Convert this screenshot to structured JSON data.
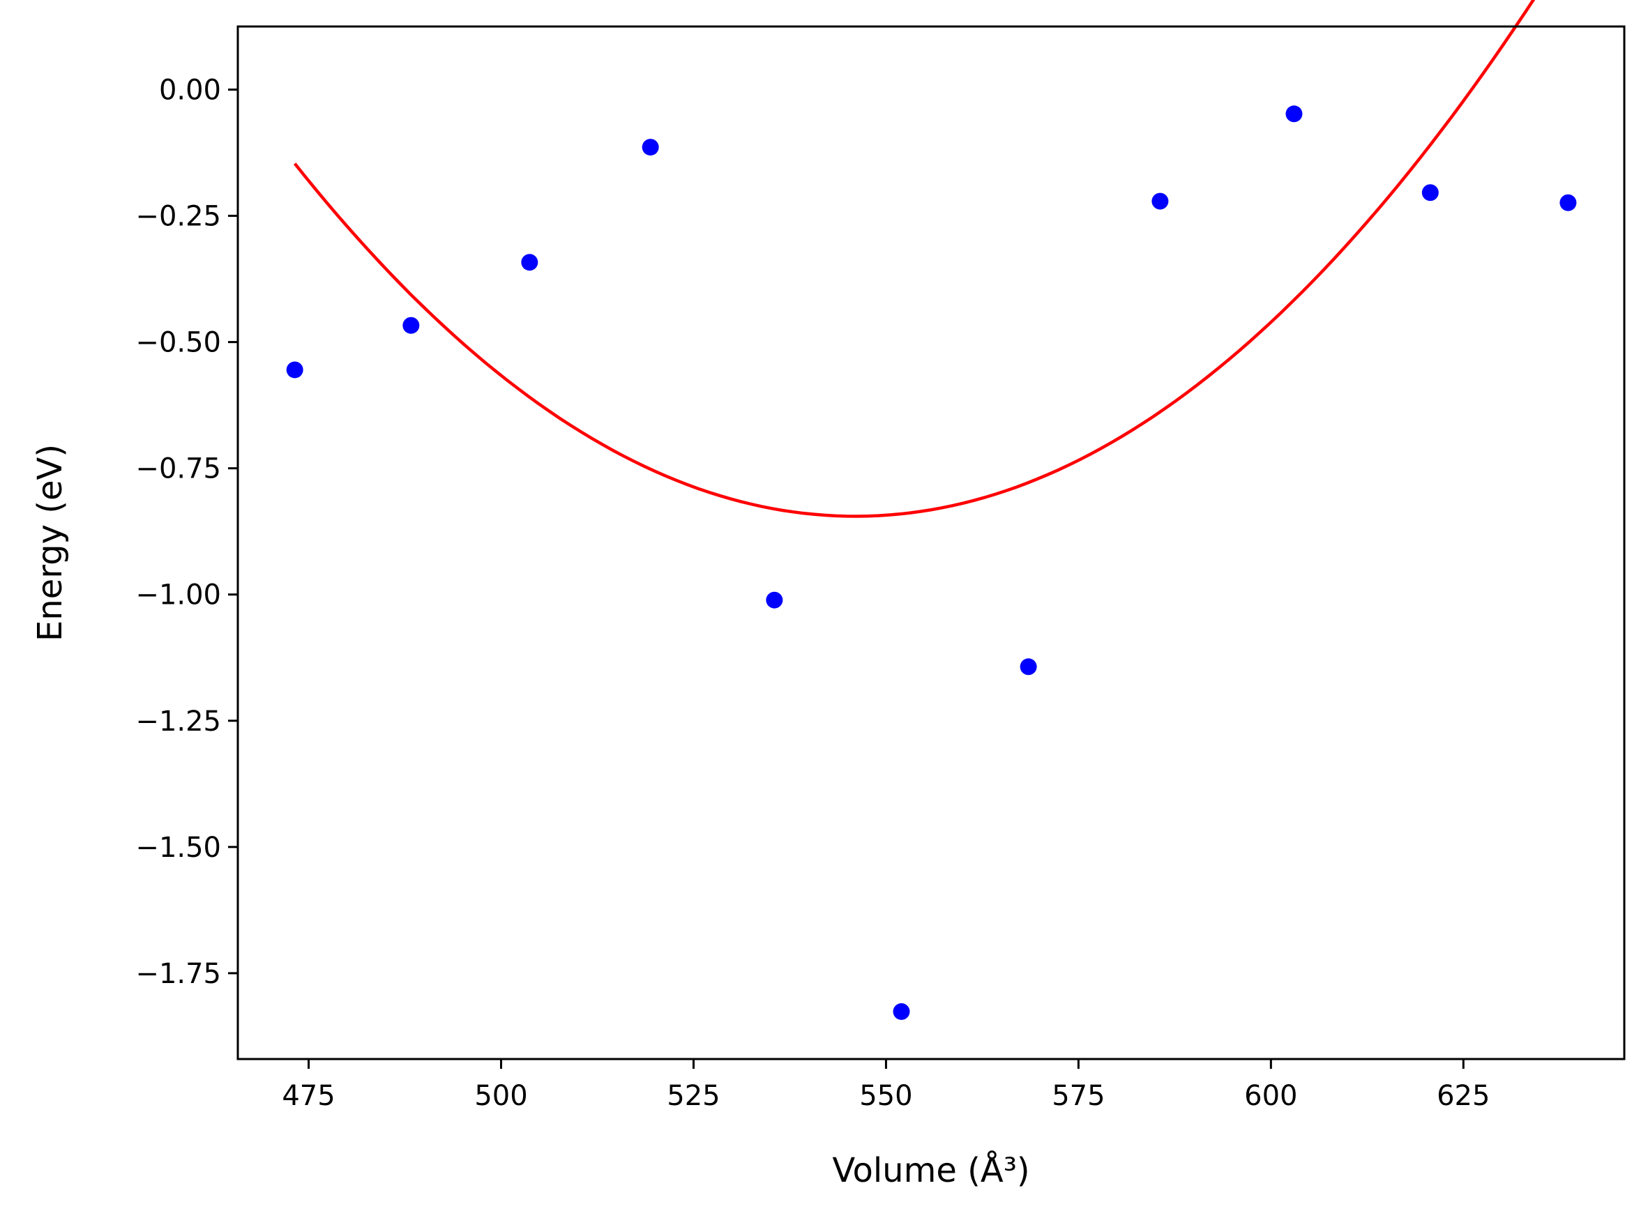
{
  "chart_data": {
    "type": "scatter",
    "xlabel": "Volume (Å³)",
    "ylabel": "Energy (eV)",
    "xlim": [
      465.8,
      645.9
    ],
    "ylim": [
      -1.92,
      0.125
    ],
    "grid": false,
    "x_ticks": [
      475,
      500,
      525,
      550,
      575,
      600,
      625
    ],
    "x_tick_labels": [
      "475",
      "500",
      "525",
      "550",
      "575",
      "600",
      "625"
    ],
    "y_ticks": [
      0.0,
      -0.25,
      -0.5,
      -0.75,
      -1.0,
      -1.25,
      -1.5,
      -1.75
    ],
    "y_tick_labels": [
      "0.00",
      "−0.25",
      "−0.50",
      "−0.75",
      "−1.00",
      "−1.25",
      "−1.50",
      "−1.75"
    ],
    "series": [
      {
        "kind": "scatter",
        "color": "#0000ff",
        "points": [
          {
            "x": 473.2,
            "y": -0.555
          },
          {
            "x": 488.3,
            "y": -0.467
          },
          {
            "x": 503.7,
            "y": -0.342
          },
          {
            "x": 519.4,
            "y": -0.114
          },
          {
            "x": 535.5,
            "y": -1.011
          },
          {
            "x": 552.0,
            "y": -1.826
          },
          {
            "x": 568.5,
            "y": -1.143
          },
          {
            "x": 585.6,
            "y": -0.221
          },
          {
            "x": 603.0,
            "y": -0.048
          },
          {
            "x": 620.7,
            "y": -0.204
          },
          {
            "x": 638.6,
            "y": -0.224
          }
        ]
      },
      {
        "kind": "line",
        "color": "#ff0000",
        "curve": {
          "type": "quadratic",
          "vertex_x": 546.0,
          "vertex_y": -0.845,
          "a": 0.0001318,
          "x_range": [
            473.2,
            638.6
          ]
        }
      }
    ]
  }
}
